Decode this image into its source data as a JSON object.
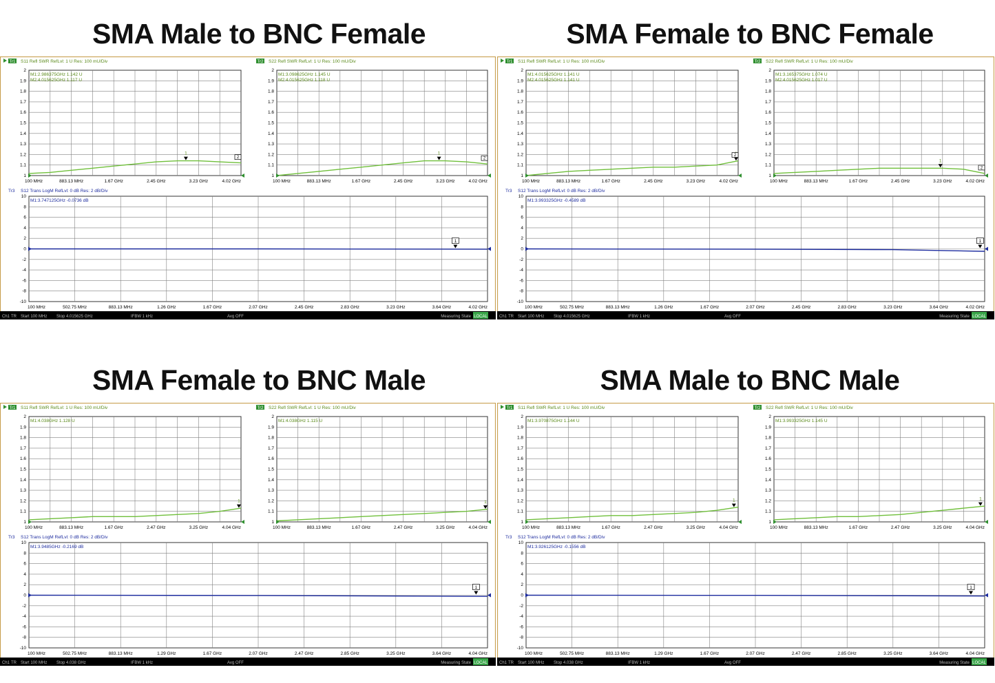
{
  "colors": {
    "swr_trace": "#6fbf3a",
    "s12_trace": "#1c2b9e",
    "header_text": "#5a8a1a",
    "tr3_label": "#1c2b9e",
    "frame": "#c8a050",
    "grid": "#808080",
    "status_bar": "#000000",
    "status_highlight": "#3aa64a"
  },
  "panels": [
    {
      "title": "SMA Male to BNC Female",
      "s11": {
        "header": "S11 Refl SWR RefLvl: 1  U Res: 100 mU/Div",
        "tag": "Tr1",
        "markers": [
          "M1:2.986375GHz  1.142  U",
          "M2:4.015625GHz  1.117  U"
        ],
        "ticks": [
          "100 MHz",
          "883.13 MHz",
          "1.67 GHz",
          "2.45 GHz",
          "3.23 GHz",
          "4.02 GHz"
        ],
        "points": [
          [
            0,
            1.02
          ],
          [
            0.1,
            1.03
          ],
          [
            0.2,
            1.05
          ],
          [
            0.3,
            1.07
          ],
          [
            0.4,
            1.09
          ],
          [
            0.5,
            1.11
          ],
          [
            0.6,
            1.13
          ],
          [
            0.7,
            1.14
          ],
          [
            0.8,
            1.14
          ],
          [
            0.9,
            1.13
          ],
          [
            1,
            1.12
          ]
        ],
        "m1": 0.74,
        "m2": 1.0
      },
      "s22": {
        "header": "S22 Refl SWR RefLvl: 1  U Res: 100 mU/Div",
        "tag": "Tr2",
        "markers": [
          "M1:3.098625GHz  1.145  U",
          "M2:4.015625GHz  1.118  U"
        ],
        "ticks": [
          "100 MHz",
          "883.13 MHz",
          "1.67 GHz",
          "2.45 GHz",
          "3.23 GHz",
          "4.02 GHz"
        ],
        "points": [
          [
            0,
            1.0
          ],
          [
            0.1,
            1.02
          ],
          [
            0.2,
            1.04
          ],
          [
            0.3,
            1.06
          ],
          [
            0.4,
            1.08
          ],
          [
            0.5,
            1.1
          ],
          [
            0.6,
            1.12
          ],
          [
            0.7,
            1.14
          ],
          [
            0.8,
            1.14
          ],
          [
            0.9,
            1.13
          ],
          [
            1,
            1.11
          ]
        ],
        "m1": 0.77,
        "m2": 1.0
      },
      "s12": {
        "header": "S12 Trans LogM RefLvl: 0  dB Res: 2  dB/Div",
        "tag": "Tr3",
        "marker": "M1:3.747125GHz  -0.0736  dB",
        "ticks": [
          "100 MHz",
          "502.75 MHz",
          "883.13 MHz",
          "1.26 GHz",
          "1.67 GHz",
          "2.07 GHz",
          "2.45 GHz",
          "2.83 GHz",
          "3.23 GHz",
          "3.64 GHz",
          "4.02 GHz"
        ],
        "points": [
          [
            0,
            0
          ],
          [
            0.5,
            0
          ],
          [
            1,
            -0.05
          ]
        ],
        "m1": 0.93
      },
      "status": {
        "ch": "Ch1",
        "tr": "TR",
        "start": "Start 100 MHz",
        "stop": "Stop 4.015625 GHz",
        "ifbw": "IFBW 1 kHz",
        "avg": "Avg OFF",
        "state": "Measuring State",
        "flag": "LOCAL"
      }
    },
    {
      "title": "SMA Female to BNC Female",
      "s11": {
        "header": "S11 Refl SWR RefLvl: 1  U Res: 100 mU/Div",
        "tag": "Tr1",
        "markers": [
          "M1:4.015625GHz  1.141  U",
          "M2:4.015625GHz  1.141  U"
        ],
        "ticks": [
          "100 MHz",
          "883.13 MHz",
          "1.67 GHz",
          "2.45 GHz",
          "3.23 GHz",
          "4.02 GHz"
        ],
        "points": [
          [
            0,
            1.0
          ],
          [
            0.1,
            1.02
          ],
          [
            0.2,
            1.04
          ],
          [
            0.3,
            1.05
          ],
          [
            0.4,
            1.06
          ],
          [
            0.5,
            1.07
          ],
          [
            0.6,
            1.08
          ],
          [
            0.7,
            1.08
          ],
          [
            0.8,
            1.09
          ],
          [
            0.9,
            1.1
          ],
          [
            1,
            1.14
          ]
        ],
        "m1": 0.99,
        "m2": 1.0
      },
      "s22": {
        "header": "S22 Refl SWR RefLvl: 1  U Res: 100 mU/Div",
        "tag": "Tr2",
        "markers": [
          "M1:3.165375GHz  1.074  U",
          "M2:4.015625GHz  1.017  U"
        ],
        "ticks": [
          "100 MHz",
          "883.13 MHz",
          "1.67 GHz",
          "2.45 GHz",
          "3.23 GHz",
          "4.02 GHz"
        ],
        "points": [
          [
            0,
            1.02
          ],
          [
            0.1,
            1.03
          ],
          [
            0.2,
            1.04
          ],
          [
            0.3,
            1.05
          ],
          [
            0.4,
            1.06
          ],
          [
            0.5,
            1.07
          ],
          [
            0.6,
            1.07
          ],
          [
            0.7,
            1.07
          ],
          [
            0.8,
            1.07
          ],
          [
            0.9,
            1.06
          ],
          [
            1,
            1.02
          ]
        ],
        "m1": 0.79,
        "m2": 1.0
      },
      "s12": {
        "header": "S12 Trans LogM RefLvl: 0  dB Res: 2  dB/Div",
        "tag": "Tr3",
        "marker": "M1:3.993325GHz  -0.4589  dB",
        "ticks": [
          "100 MHz",
          "502.75 MHz",
          "883.13 MHz",
          "1.26 GHz",
          "1.67 GHz",
          "2.07 GHz",
          "2.45 GHz",
          "2.83 GHz",
          "3.23 GHz",
          "3.64 GHz",
          "4.02 GHz"
        ],
        "points": [
          [
            0,
            0
          ],
          [
            0.5,
            -0.05
          ],
          [
            0.8,
            -0.15
          ],
          [
            1,
            -0.46
          ]
        ],
        "m1": 0.99
      },
      "status": {
        "ch": "Ch1",
        "tr": "TR",
        "start": "Start 100 MHz",
        "stop": "Stop 4.015625 GHz",
        "ifbw": "IFBW 1 kHz",
        "avg": "Avg OFF",
        "state": "Measuring State",
        "flag": "LOCAL"
      }
    },
    {
      "title": "SMA Female to BNC Male",
      "s11": {
        "header": "S11 Refl SWR RefLvl: 1  U Res: 100 mU/Div",
        "tag": "Tr1",
        "markers": [
          "M1:4.038GHz  1.128  U"
        ],
        "ticks": [
          "100 MHz",
          "883.13 MHz",
          "1.67 GHz",
          "2.47 GHz",
          "3.25 GHz",
          "4.04 GHz"
        ],
        "points": [
          [
            0,
            1.02
          ],
          [
            0.1,
            1.03
          ],
          [
            0.2,
            1.04
          ],
          [
            0.3,
            1.05
          ],
          [
            0.4,
            1.05
          ],
          [
            0.5,
            1.05
          ],
          [
            0.6,
            1.06
          ],
          [
            0.7,
            1.07
          ],
          [
            0.8,
            1.08
          ],
          [
            0.9,
            1.1
          ],
          [
            1,
            1.13
          ]
        ],
        "m1": 0.99
      },
      "s22": {
        "header": "S22 Refl SWR RefLvl: 1  U Res: 100 mU/Div",
        "tag": "Tr2",
        "markers": [
          "M1:4.038GHz  1.115  U"
        ],
        "ticks": [
          "100 MHz",
          "883.13 MHz",
          "1.67 GHz",
          "2.47 GHz",
          "3.25 GHz",
          "4.04 GHz"
        ],
        "points": [
          [
            0,
            1.01
          ],
          [
            0.1,
            1.02
          ],
          [
            0.2,
            1.03
          ],
          [
            0.3,
            1.04
          ],
          [
            0.4,
            1.05
          ],
          [
            0.5,
            1.06
          ],
          [
            0.6,
            1.07
          ],
          [
            0.7,
            1.08
          ],
          [
            0.8,
            1.09
          ],
          [
            0.9,
            1.1
          ],
          [
            1,
            1.12
          ]
        ],
        "m1": 0.99
      },
      "s12": {
        "header": "S12 Trans LogM RefLvl: 0  dB Res: 2  dB/Div",
        "tag": "Tr3",
        "marker": "M1:3.9485GHz  -0.2169  dB",
        "ticks": [
          "100 MHz",
          "502.75 MHz",
          "883.13 MHz",
          "1.29 GHz",
          "1.67 GHz",
          "2.07 GHz",
          "2.47 GHz",
          "2.85 GHz",
          "3.25 GHz",
          "3.64 GHz",
          "4.04 GHz"
        ],
        "points": [
          [
            0,
            0
          ],
          [
            0.5,
            -0.05
          ],
          [
            1,
            -0.22
          ]
        ],
        "m1": 0.975
      },
      "status": {
        "ch": "Ch1",
        "tr": "TR",
        "start": "Start 100 MHz",
        "stop": "Stop 4.038 GHz",
        "ifbw": "IFBW 1 kHz",
        "avg": "Avg OFF",
        "state": "Measuring State",
        "flag": "LOCAL"
      }
    },
    {
      "title": "SMA Male to BNC Male",
      "s11": {
        "header": "S11 Refl SWR RefLvl: 1  U Res: 100 mU/Div",
        "tag": "Tr1",
        "markers": [
          "M1:3.970875GHz  1.144  U"
        ],
        "ticks": [
          "100 MHz",
          "883.13 MHz",
          "1.67 GHz",
          "2.47 GHz",
          "3.25 GHz",
          "4.04 GHz"
        ],
        "points": [
          [
            0,
            1.02
          ],
          [
            0.1,
            1.03
          ],
          [
            0.2,
            1.04
          ],
          [
            0.3,
            1.05
          ],
          [
            0.4,
            1.06
          ],
          [
            0.5,
            1.06
          ],
          [
            0.6,
            1.07
          ],
          [
            0.7,
            1.08
          ],
          [
            0.8,
            1.09
          ],
          [
            0.9,
            1.11
          ],
          [
            1,
            1.14
          ]
        ],
        "m1": 0.98
      },
      "s22": {
        "header": "S22 Refl SWR RefLvl: 1  U Res: 100 mU/Div",
        "tag": "Tr2",
        "markers": [
          "M1:3.993325GHz  1.145  U"
        ],
        "ticks": [
          "100 MHz",
          "883.13 MHz",
          "1.67 GHz",
          "2.47 GHz",
          "3.25 GHz",
          "4.04 GHz"
        ],
        "points": [
          [
            0,
            1.02
          ],
          [
            0.1,
            1.03
          ],
          [
            0.2,
            1.04
          ],
          [
            0.3,
            1.05
          ],
          [
            0.4,
            1.05
          ],
          [
            0.5,
            1.06
          ],
          [
            0.6,
            1.07
          ],
          [
            0.7,
            1.09
          ],
          [
            0.8,
            1.11
          ],
          [
            0.9,
            1.13
          ],
          [
            1,
            1.15
          ]
        ],
        "m1": 0.98
      },
      "s12": {
        "header": "S12 Trans LogM RefLvl: 0  dB Res: 2  dB/Div",
        "tag": "Tr3",
        "marker": "M1:3.926125GHz  -0.1556  dB",
        "ticks": [
          "100 MHz",
          "502.75 MHz",
          "883.13 MHz",
          "1.29 GHz",
          "1.67 GHz",
          "2.07 GHz",
          "2.47 GHz",
          "2.85 GHz",
          "3.25 GHz",
          "3.64 GHz",
          "4.04 GHz"
        ],
        "points": [
          [
            0,
            0
          ],
          [
            0.5,
            -0.03
          ],
          [
            1,
            -0.16
          ]
        ],
        "m1": 0.97
      },
      "status": {
        "ch": "Ch1",
        "tr": "TR",
        "start": "Start 100 MHz",
        "stop": "Stop 4.038 GHz",
        "ifbw": "IFBW 1 kHz",
        "avg": "Avg OFF",
        "state": "Measuring State",
        "flag": "LOCAL"
      }
    }
  ],
  "chart_data": [
    {
      "type": "line",
      "title": "SMA Male to BNC Female",
      "series": [
        {
          "name": "S11 Refl SWR",
          "x_GHz": [
            0.1,
            0.49,
            0.88,
            1.27,
            1.67,
            2.06,
            2.45,
            2.84,
            3.23,
            3.62,
            4.02
          ],
          "y": [
            1.02,
            1.03,
            1.05,
            1.07,
            1.09,
            1.11,
            1.13,
            1.14,
            1.14,
            1.13,
            1.12
          ]
        },
        {
          "name": "S22 Refl SWR",
          "x_GHz": [
            0.1,
            0.49,
            0.88,
            1.27,
            1.67,
            2.06,
            2.45,
            2.84,
            3.23,
            3.62,
            4.02
          ],
          "y": [
            1.0,
            1.02,
            1.04,
            1.06,
            1.08,
            1.1,
            1.12,
            1.14,
            1.14,
            1.13,
            1.11
          ]
        },
        {
          "name": "S12 Trans LogM",
          "x_GHz": [
            0.1,
            2.06,
            4.02
          ],
          "y_dB": [
            0,
            0,
            -0.05
          ]
        }
      ],
      "ylim_swr": [
        1,
        2
      ],
      "ylim_db": [
        -10,
        10
      ]
    },
    {
      "type": "line",
      "title": "SMA Female to BNC Female",
      "series": [
        {
          "name": "S11 Refl SWR",
          "x_GHz": [
            0.1,
            0.49,
            0.88,
            1.27,
            1.67,
            2.06,
            2.45,
            2.84,
            3.23,
            3.62,
            4.02
          ],
          "y": [
            1.0,
            1.02,
            1.04,
            1.05,
            1.06,
            1.07,
            1.08,
            1.08,
            1.09,
            1.1,
            1.14
          ]
        },
        {
          "name": "S22 Refl SWR",
          "x_GHz": [
            0.1,
            0.49,
            0.88,
            1.27,
            1.67,
            2.06,
            2.45,
            2.84,
            3.23,
            3.62,
            4.02
          ],
          "y": [
            1.02,
            1.03,
            1.04,
            1.05,
            1.06,
            1.07,
            1.07,
            1.07,
            1.07,
            1.06,
            1.02
          ]
        },
        {
          "name": "S12 Trans LogM",
          "x_GHz": [
            0.1,
            2.06,
            3.23,
            4.02
          ],
          "y_dB": [
            0,
            -0.05,
            -0.15,
            -0.46
          ]
        }
      ],
      "ylim_swr": [
        1,
        2
      ],
      "ylim_db": [
        -10,
        10
      ]
    },
    {
      "type": "line",
      "title": "SMA Female to BNC Male",
      "series": [
        {
          "name": "S11 Refl SWR",
          "x_GHz": [
            0.1,
            0.49,
            0.89,
            1.28,
            1.67,
            2.07,
            2.47,
            2.86,
            3.25,
            3.65,
            4.04
          ],
          "y": [
            1.02,
            1.03,
            1.04,
            1.05,
            1.05,
            1.05,
            1.06,
            1.07,
            1.08,
            1.1,
            1.13
          ]
        },
        {
          "name": "S22 Refl SWR",
          "x_GHz": [
            0.1,
            0.49,
            0.89,
            1.28,
            1.67,
            2.07,
            2.47,
            2.86,
            3.25,
            3.65,
            4.04
          ],
          "y": [
            1.01,
            1.02,
            1.03,
            1.04,
            1.05,
            1.06,
            1.07,
            1.08,
            1.09,
            1.1,
            1.12
          ]
        },
        {
          "name": "S12 Trans LogM",
          "x_GHz": [
            0.1,
            2.07,
            4.04
          ],
          "y_dB": [
            0,
            -0.05,
            -0.22
          ]
        }
      ],
      "ylim_swr": [
        1,
        2
      ],
      "ylim_db": [
        -10,
        10
      ]
    },
    {
      "type": "line",
      "title": "SMA Male to BNC Male",
      "series": [
        {
          "name": "S11 Refl SWR",
          "x_GHz": [
            0.1,
            0.49,
            0.89,
            1.28,
            1.67,
            2.07,
            2.47,
            2.86,
            3.25,
            3.65,
            4.04
          ],
          "y": [
            1.02,
            1.03,
            1.04,
            1.05,
            1.06,
            1.06,
            1.07,
            1.08,
            1.09,
            1.11,
            1.14
          ]
        },
        {
          "name": "S22 Refl SWR",
          "x_GHz": [
            0.1,
            0.49,
            0.89,
            1.28,
            1.67,
            2.07,
            2.47,
            2.86,
            3.25,
            3.65,
            4.04
          ],
          "y": [
            1.02,
            1.03,
            1.04,
            1.05,
            1.05,
            1.06,
            1.07,
            1.09,
            1.11,
            1.13,
            1.15
          ]
        },
        {
          "name": "S12 Trans LogM",
          "x_GHz": [
            0.1,
            2.07,
            4.04
          ],
          "y_dB": [
            0,
            -0.03,
            -0.16
          ]
        }
      ],
      "ylim_swr": [
        1,
        2
      ],
      "ylim_db": [
        -10,
        10
      ]
    }
  ]
}
